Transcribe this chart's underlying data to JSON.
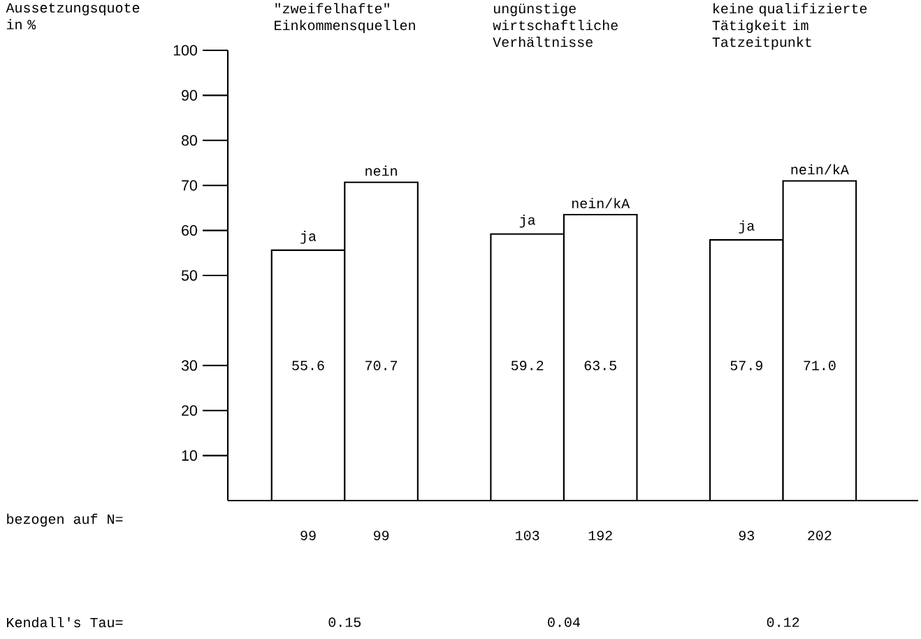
{
  "chart_data": {
    "type": "bar",
    "ylabel": "Aussetzungsquote in %",
    "categories": [
      "99",
      "99",
      null,
      "103",
      "192",
      null,
      "93",
      "202"
    ],
    "values": [
      55.6,
      70.7,
      null,
      59.2,
      63.5,
      null,
      57.9,
      71.0
    ],
    "value_labels": [
      "55.6",
      "70.7",
      null,
      "59.2",
      "63.5",
      null,
      "57.9",
      "71.0"
    ],
    "color": "#ffffff",
    "ylim": [
      0,
      100
    ],
    "yticks": [
      10,
      20,
      30,
      50,
      60,
      70,
      80,
      90,
      100
    ],
    "grid": false,
    "legend": false,
    "annotations": [
      "\"zweifelhafte\" Einkommensquellen",
      "ungünstige wirtschaftliche Verhältnisse",
      "keine qualifizierte Tätigkeit im Tatzeitpunkt",
      "bezogen auf N=",
      "ja",
      "nein",
      "ja",
      "nein/kA",
      "ja",
      "nein/kA",
      "Kendall's Tau=",
      "0.15",
      "0.04",
      "0.12"
    ]
  }
}
